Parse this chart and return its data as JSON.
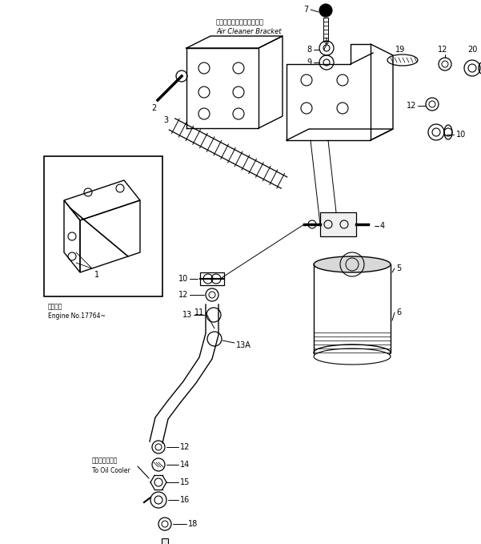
{
  "bg_color": "#ffffff",
  "fig_width": 6.01,
  "fig_height": 6.79,
  "dpi": 100,
  "bracket_label_jp": "エアークリーナブラケット",
  "bracket_label_en": "Air Cleaner Bracket",
  "inset_label_jp": "適用番号",
  "inset_label_en": "Engine No.17764~",
  "oil_cooler_jp": "オイルクーラヘ",
  "oil_cooler_en": "To Oil Cooler"
}
